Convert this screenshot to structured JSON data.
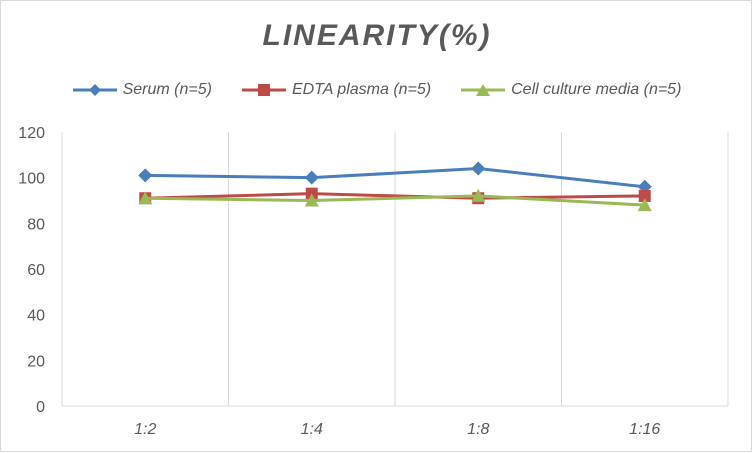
{
  "chart_data": {
    "type": "line",
    "title": "LINEARITY(%)",
    "categories": [
      "1:2",
      "1:4",
      "1:8",
      "1:16"
    ],
    "ylim": [
      0,
      120
    ],
    "yticks": [
      0,
      20,
      40,
      60,
      80,
      100,
      120
    ],
    "grid": "vertical",
    "legend": "top",
    "series": [
      {
        "name": "Serum (n=5)",
        "values": [
          101,
          100,
          104,
          96
        ],
        "color": "#4a7ebb",
        "marker": "diamond"
      },
      {
        "name": "EDTA plasma (n=5)",
        "values": [
          91,
          93,
          91,
          92
        ],
        "color": "#be4b48",
        "marker": "square"
      },
      {
        "name": "Cell culture media (n=5)",
        "values": [
          91,
          90,
          92,
          88
        ],
        "color": "#98b954",
        "marker": "triangle"
      }
    ]
  }
}
